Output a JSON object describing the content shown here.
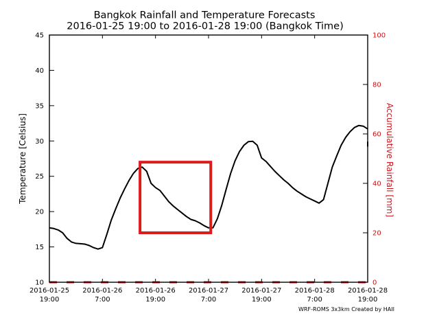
{
  "chart_data": {
    "type": "line",
    "title": [
      "Bangkok Rainfall and Temperature Forecasts",
      "2016-01-25 19:00 to 2016-01-28 19:00 (Bangkok Time)"
    ],
    "ylabel": "Temperature [Celsius]",
    "y2label": "Accumulative Rainfall [mm]",
    "ylim": [
      10,
      45
    ],
    "y2lim": [
      0,
      100
    ],
    "xlim": [
      0,
      72
    ],
    "y_ticks": [
      10,
      15,
      20,
      25,
      30,
      35,
      40,
      45
    ],
    "y2_ticks": [
      0,
      20,
      40,
      60,
      80,
      100
    ],
    "x_ticks": [
      {
        "x": 0,
        "label": [
          "2016-01-25",
          "19:00"
        ]
      },
      {
        "x": 12,
        "label": [
          "2016-01-26",
          "7:00"
        ]
      },
      {
        "x": 24,
        "label": [
          "2016-01-26",
          "19:00"
        ]
      },
      {
        "x": 36,
        "label": [
          "2016-01-27",
          "7:00"
        ]
      },
      {
        "x": 48,
        "label": [
          "2016-01-27",
          "19:00"
        ]
      },
      {
        "x": 60,
        "label": [
          "2016-01-28",
          "7:00"
        ]
      },
      {
        "x": 72,
        "label": [
          "2016-01-28",
          "19:00"
        ]
      }
    ],
    "series": [
      {
        "name": "Temperature",
        "axis": "left",
        "color": "#000000",
        "x": [
          0,
          1,
          2,
          3,
          4,
          5,
          6,
          7,
          8,
          9,
          10,
          11,
          12,
          13,
          14,
          15,
          16,
          17,
          18,
          19,
          20,
          21,
          22,
          23,
          24,
          25,
          26,
          27,
          28,
          29,
          30,
          31,
          32,
          33,
          34,
          35,
          36,
          37,
          38,
          39,
          40,
          41,
          42,
          43,
          44,
          45,
          46,
          47,
          48,
          49,
          50,
          51,
          52,
          53,
          54,
          55,
          56,
          57,
          58,
          59,
          60,
          61,
          62,
          63,
          64,
          65,
          66,
          67,
          68,
          69,
          70,
          71,
          72
        ],
        "values": [
          17.7,
          17.6,
          17.4,
          17.0,
          16.2,
          15.7,
          15.5,
          15.45,
          15.4,
          15.2,
          14.9,
          14.7,
          14.9,
          16.8,
          18.8,
          20.4,
          21.9,
          23.2,
          24.4,
          25.4,
          26.1,
          26.3,
          25.7,
          24.0,
          23.4,
          23.0,
          22.2,
          21.4,
          20.8,
          20.3,
          19.8,
          19.3,
          18.9,
          18.7,
          18.4,
          18.0,
          17.7,
          17.7,
          19.0,
          20.9,
          23.2,
          25.4,
          27.2,
          28.5,
          29.4,
          29.9,
          29.95,
          29.4,
          27.6,
          27.1,
          26.4,
          25.7,
          25.1,
          24.5,
          24.0,
          23.4,
          22.9,
          22.5,
          22.1,
          21.8,
          21.5,
          21.2,
          21.7,
          24.0,
          26.3,
          27.9,
          29.4,
          30.5,
          31.3,
          31.9,
          32.2,
          32.1,
          31.7
        ]
      },
      {
        "name": "Accumulative Rainfall",
        "axis": "right",
        "color": "#cc1111",
        "x": [
          0,
          72
        ],
        "values": [
          0,
          0
        ]
      }
    ],
    "tail": {
      "x": [
        72,
        72.5,
        73
      ],
      "values": [
        29.9,
        29.5,
        29.2
      ]
    },
    "highlight_box": {
      "x": [
        20.5,
        36.5
      ],
      "y": [
        17,
        27
      ],
      "color": "#e01a1a"
    }
  },
  "footer": {
    "credit": "WRF-ROMS 3x3km   Created by HAII"
  }
}
